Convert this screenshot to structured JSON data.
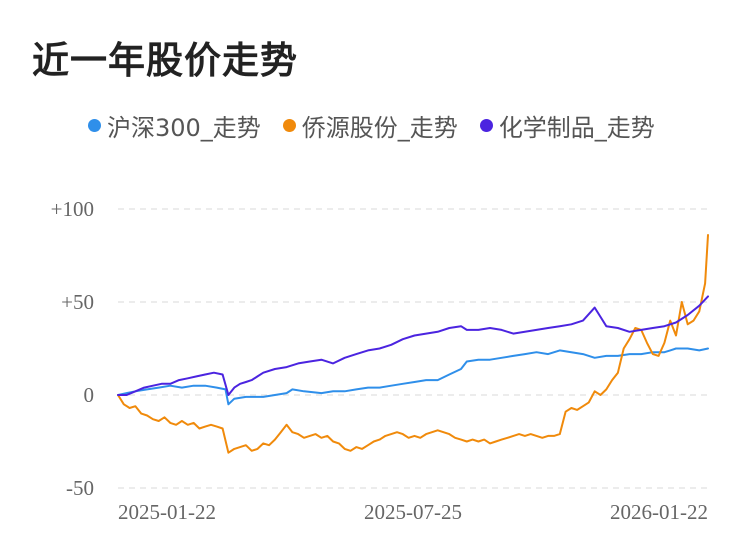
{
  "title": "近一年股价走势",
  "legend": [
    {
      "label": "沪深300_走势",
      "color": "#2f8fea"
    },
    {
      "label": "侨源股份_走势",
      "color": "#f08a0b"
    },
    {
      "label": "化学制品_走势",
      "color": "#4b24e0"
    }
  ],
  "chart_data": {
    "type": "line",
    "title": "近一年股价走势",
    "xlabel": "",
    "ylabel": "",
    "ylim": [
      -50,
      100
    ],
    "y_ticks": [
      "+100",
      "+50",
      "0",
      "-50"
    ],
    "y_tick_values": [
      100,
      50,
      0,
      -50
    ],
    "x_ticks": [
      "2025-01-22",
      "2025-07-25",
      "2026-01-22"
    ],
    "grid": "horizontal dashed",
    "legend_position": "top",
    "series": [
      {
        "name": "沪深300_走势",
        "color": "#2f8fea",
        "points": [
          [
            0,
            0
          ],
          [
            3,
            1
          ],
          [
            6,
            2
          ],
          [
            10,
            3
          ],
          [
            14,
            4
          ],
          [
            18,
            5
          ],
          [
            22,
            4
          ],
          [
            26,
            5
          ],
          [
            30,
            5
          ],
          [
            34,
            4
          ],
          [
            37,
            3
          ],
          [
            38,
            -5
          ],
          [
            40,
            -2
          ],
          [
            44,
            -1
          ],
          [
            50,
            -1
          ],
          [
            54,
            0
          ],
          [
            58,
            1
          ],
          [
            60,
            3
          ],
          [
            64,
            2
          ],
          [
            70,
            1
          ],
          [
            74,
            2
          ],
          [
            78,
            2
          ],
          [
            82,
            3
          ],
          [
            86,
            4
          ],
          [
            90,
            4
          ],
          [
            94,
            5
          ],
          [
            98,
            6
          ],
          [
            102,
            7
          ],
          [
            106,
            8
          ],
          [
            110,
            8
          ],
          [
            114,
            11
          ],
          [
            118,
            14
          ],
          [
            120,
            18
          ],
          [
            124,
            19
          ],
          [
            128,
            19
          ],
          [
            132,
            20
          ],
          [
            136,
            21
          ],
          [
            140,
            22
          ],
          [
            144,
            23
          ],
          [
            148,
            22
          ],
          [
            152,
            24
          ],
          [
            156,
            23
          ],
          [
            160,
            22
          ],
          [
            164,
            20
          ],
          [
            168,
            21
          ],
          [
            172,
            21
          ],
          [
            176,
            22
          ],
          [
            180,
            22
          ],
          [
            184,
            23
          ],
          [
            188,
            23
          ],
          [
            190,
            24
          ],
          [
            192,
            25
          ],
          [
            196,
            25
          ],
          [
            200,
            24
          ],
          [
            203,
            25
          ]
        ]
      },
      {
        "name": "侨源股份_走势",
        "color": "#f08a0b",
        "points": [
          [
            0,
            0
          ],
          [
            2,
            -5
          ],
          [
            4,
            -7
          ],
          [
            6,
            -6
          ],
          [
            8,
            -10
          ],
          [
            10,
            -11
          ],
          [
            12,
            -13
          ],
          [
            14,
            -14
          ],
          [
            16,
            -12
          ],
          [
            18,
            -15
          ],
          [
            20,
            -16
          ],
          [
            22,
            -14
          ],
          [
            24,
            -16
          ],
          [
            26,
            -15
          ],
          [
            28,
            -18
          ],
          [
            30,
            -17
          ],
          [
            32,
            -16
          ],
          [
            34,
            -17
          ],
          [
            36,
            -18
          ],
          [
            38,
            -31
          ],
          [
            40,
            -29
          ],
          [
            42,
            -28
          ],
          [
            44,
            -27
          ],
          [
            46,
            -30
          ],
          [
            48,
            -29
          ],
          [
            50,
            -26
          ],
          [
            52,
            -27
          ],
          [
            54,
            -24
          ],
          [
            56,
            -20
          ],
          [
            58,
            -16
          ],
          [
            60,
            -20
          ],
          [
            62,
            -21
          ],
          [
            64,
            -23
          ],
          [
            66,
            -22
          ],
          [
            68,
            -21
          ],
          [
            70,
            -23
          ],
          [
            72,
            -22
          ],
          [
            74,
            -25
          ],
          [
            76,
            -26
          ],
          [
            78,
            -29
          ],
          [
            80,
            -30
          ],
          [
            82,
            -28
          ],
          [
            84,
            -29
          ],
          [
            86,
            -27
          ],
          [
            88,
            -25
          ],
          [
            90,
            -24
          ],
          [
            92,
            -22
          ],
          [
            94,
            -21
          ],
          [
            96,
            -20
          ],
          [
            98,
            -21
          ],
          [
            100,
            -23
          ],
          [
            102,
            -22
          ],
          [
            104,
            -23
          ],
          [
            106,
            -21
          ],
          [
            108,
            -20
          ],
          [
            110,
            -19
          ],
          [
            112,
            -20
          ],
          [
            114,
            -21
          ],
          [
            116,
            -23
          ],
          [
            118,
            -24
          ],
          [
            120,
            -25
          ],
          [
            122,
            -24
          ],
          [
            124,
            -25
          ],
          [
            126,
            -24
          ],
          [
            128,
            -26
          ],
          [
            130,
            -25
          ],
          [
            132,
            -24
          ],
          [
            134,
            -23
          ],
          [
            136,
            -22
          ],
          [
            138,
            -21
          ],
          [
            140,
            -22
          ],
          [
            142,
            -21
          ],
          [
            144,
            -22
          ],
          [
            146,
            -23
          ],
          [
            148,
            -22
          ],
          [
            150,
            -22
          ],
          [
            152,
            -21
          ],
          [
            154,
            -9
          ],
          [
            156,
            -7
          ],
          [
            158,
            -8
          ],
          [
            160,
            -6
          ],
          [
            162,
            -4
          ],
          [
            164,
            2
          ],
          [
            166,
            0
          ],
          [
            168,
            3
          ],
          [
            170,
            8
          ],
          [
            172,
            12
          ],
          [
            174,
            25
          ],
          [
            176,
            30
          ],
          [
            178,
            36
          ],
          [
            180,
            35
          ],
          [
            182,
            28
          ],
          [
            184,
            22
          ],
          [
            186,
            21
          ],
          [
            188,
            28
          ],
          [
            190,
            40
          ],
          [
            192,
            32
          ],
          [
            194,
            50
          ],
          [
            196,
            38
          ],
          [
            198,
            40
          ],
          [
            200,
            45
          ],
          [
            202,
            60
          ],
          [
            203,
            86
          ]
        ]
      },
      {
        "name": "化学制品_走势",
        "color": "#4b24e0",
        "points": [
          [
            0,
            0
          ],
          [
            3,
            0
          ],
          [
            6,
            2
          ],
          [
            9,
            4
          ],
          [
            12,
            5
          ],
          [
            15,
            6
          ],
          [
            18,
            6
          ],
          [
            21,
            8
          ],
          [
            24,
            9
          ],
          [
            27,
            10
          ],
          [
            30,
            11
          ],
          [
            33,
            12
          ],
          [
            36,
            11
          ],
          [
            38,
            0
          ],
          [
            40,
            4
          ],
          [
            42,
            6
          ],
          [
            44,
            7
          ],
          [
            46,
            8
          ],
          [
            48,
            10
          ],
          [
            50,
            12
          ],
          [
            54,
            14
          ],
          [
            58,
            15
          ],
          [
            62,
            17
          ],
          [
            66,
            18
          ],
          [
            70,
            19
          ],
          [
            74,
            17
          ],
          [
            78,
            20
          ],
          [
            82,
            22
          ],
          [
            86,
            24
          ],
          [
            90,
            25
          ],
          [
            94,
            27
          ],
          [
            98,
            30
          ],
          [
            102,
            32
          ],
          [
            106,
            33
          ],
          [
            110,
            34
          ],
          [
            114,
            36
          ],
          [
            118,
            37
          ],
          [
            120,
            35
          ],
          [
            124,
            35
          ],
          [
            128,
            36
          ],
          [
            132,
            35
          ],
          [
            136,
            33
          ],
          [
            140,
            34
          ],
          [
            144,
            35
          ],
          [
            148,
            36
          ],
          [
            152,
            37
          ],
          [
            156,
            38
          ],
          [
            160,
            40
          ],
          [
            164,
            47
          ],
          [
            166,
            42
          ],
          [
            168,
            37
          ],
          [
            172,
            36
          ],
          [
            176,
            34
          ],
          [
            180,
            35
          ],
          [
            184,
            36
          ],
          [
            188,
            37
          ],
          [
            192,
            39
          ],
          [
            196,
            43
          ],
          [
            200,
            48
          ],
          [
            203,
            53
          ]
        ]
      }
    ]
  }
}
